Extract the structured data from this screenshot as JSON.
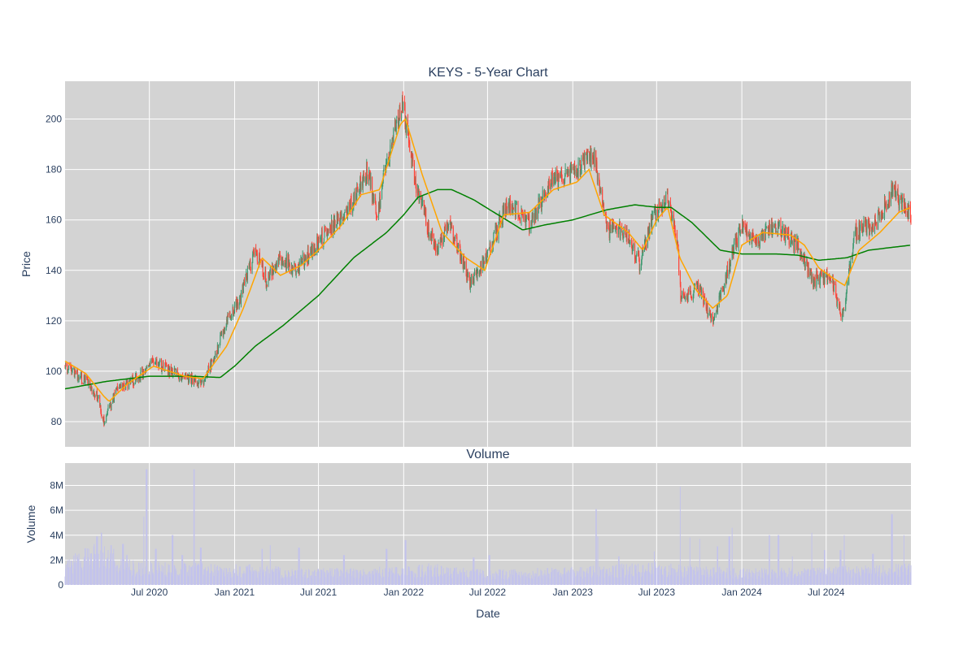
{
  "chart_data": {
    "type": "candlestick",
    "title": "KEYS - 5-Year Chart",
    "colors": {
      "increasing": "#3d9970",
      "decreasing": "#ff4136",
      "ma_short": "#ffa500",
      "ma_long": "#008000",
      "volume": "#c3c3ec",
      "plot_bg": "#d3d3d3",
      "grid": "#ffffff"
    },
    "x_range": [
      "2020-01-01",
      "2024-12-31"
    ],
    "x_ticks": [
      {
        "date": "2020-07-01",
        "label": "Jul 2020"
      },
      {
        "date": "2021-01-01",
        "label": "Jan 2021"
      },
      {
        "date": "2021-07-01",
        "label": "Jul 2021"
      },
      {
        "date": "2022-01-01",
        "label": "Jan 2022"
      },
      {
        "date": "2022-07-01",
        "label": "Jul 2022"
      },
      {
        "date": "2023-01-01",
        "label": "Jan 2023"
      },
      {
        "date": "2023-07-01",
        "label": "Jul 2023"
      },
      {
        "date": "2024-01-01",
        "label": "Jan 2024"
      },
      {
        "date": "2024-07-01",
        "label": "Jul 2024"
      }
    ],
    "x_axis_title": "Date",
    "price_panel": {
      "ylabel": "Price",
      "ylim": [
        70,
        215
      ],
      "y_ticks": [
        80,
        100,
        120,
        140,
        160,
        180,
        200
      ],
      "close_anchors": [
        [
          "2020-01-01",
          102
        ],
        [
          "2020-02-15",
          96
        ],
        [
          "2020-03-10",
          90
        ],
        [
          "2020-03-25",
          80
        ],
        [
          "2020-04-20",
          92
        ],
        [
          "2020-06-10",
          98
        ],
        [
          "2020-07-10",
          104
        ],
        [
          "2020-09-01",
          98
        ],
        [
          "2020-10-25",
          96
        ],
        [
          "2020-11-15",
          104
        ],
        [
          "2020-12-15",
          120
        ],
        [
          "2021-01-15",
          130
        ],
        [
          "2021-02-15",
          148
        ],
        [
          "2021-03-10",
          136
        ],
        [
          "2021-04-10",
          145
        ],
        [
          "2021-05-15",
          140
        ],
        [
          "2021-06-15",
          148
        ],
        [
          "2021-08-01",
          158
        ],
        [
          "2021-09-15",
          168
        ],
        [
          "2021-10-15",
          180
        ],
        [
          "2021-11-05",
          160
        ],
        [
          "2021-11-20",
          178
        ],
        [
          "2021-12-30",
          207
        ],
        [
          "2022-01-25",
          175
        ],
        [
          "2022-03-10",
          148
        ],
        [
          "2022-04-10",
          158
        ],
        [
          "2022-05-25",
          135
        ],
        [
          "2022-06-25",
          143
        ],
        [
          "2022-08-15",
          168
        ],
        [
          "2022-09-30",
          158
        ],
        [
          "2022-11-15",
          175
        ],
        [
          "2023-01-01",
          178
        ],
        [
          "2023-02-15",
          186
        ],
        [
          "2023-03-15",
          156
        ],
        [
          "2023-04-25",
          156
        ],
        [
          "2023-05-25",
          143
        ],
        [
          "2023-06-25",
          162
        ],
        [
          "2023-07-25",
          168
        ],
        [
          "2023-08-15",
          150
        ],
        [
          "2023-08-22",
          130
        ],
        [
          "2023-09-30",
          133
        ],
        [
          "2023-10-30",
          119
        ],
        [
          "2023-12-01",
          140
        ],
        [
          "2023-12-31",
          158
        ],
        [
          "2024-02-01",
          152
        ],
        [
          "2024-03-15",
          158
        ],
        [
          "2024-05-01",
          150
        ],
        [
          "2024-06-01",
          136
        ],
        [
          "2024-07-10",
          138
        ],
        [
          "2024-08-05",
          121
        ],
        [
          "2024-09-01",
          155
        ],
        [
          "2024-10-15",
          158
        ],
        [
          "2024-11-20",
          172
        ],
        [
          "2024-12-31",
          162
        ]
      ],
      "ma_short_anchors": [
        [
          "2020-01-01",
          104
        ],
        [
          "2020-02-15",
          99
        ],
        [
          "2020-03-25",
          90
        ],
        [
          "2020-04-05",
          88
        ],
        [
          "2020-05-15",
          95
        ],
        [
          "2020-07-10",
          102
        ],
        [
          "2020-09-15",
          98
        ],
        [
          "2020-10-25",
          97
        ],
        [
          "2020-12-15",
          110
        ],
        [
          "2021-01-20",
          125
        ],
        [
          "2021-03-01",
          145
        ],
        [
          "2021-04-10",
          138
        ],
        [
          "2021-05-25",
          142
        ],
        [
          "2021-07-01",
          148
        ],
        [
          "2021-08-20",
          158
        ],
        [
          "2021-10-01",
          170
        ],
        [
          "2021-11-10",
          172
        ],
        [
          "2021-12-25",
          198
        ],
        [
          "2022-01-05",
          200
        ],
        [
          "2022-02-10",
          178
        ],
        [
          "2022-03-25",
          155
        ],
        [
          "2022-05-15",
          145
        ],
        [
          "2022-06-25",
          140
        ],
        [
          "2022-08-05",
          162
        ],
        [
          "2022-09-30",
          163
        ],
        [
          "2022-11-20",
          172
        ],
        [
          "2023-01-10",
          175
        ],
        [
          "2023-02-05",
          180
        ],
        [
          "2023-03-10",
          162
        ],
        [
          "2023-05-01",
          155
        ],
        [
          "2023-06-01",
          148
        ],
        [
          "2023-07-01",
          160
        ],
        [
          "2023-07-25",
          165
        ],
        [
          "2023-08-20",
          145
        ],
        [
          "2023-09-25",
          132
        ],
        [
          "2023-10-30",
          125
        ],
        [
          "2023-12-01",
          130
        ],
        [
          "2024-01-01",
          150
        ],
        [
          "2024-02-15",
          155
        ],
        [
          "2024-04-15",
          154
        ],
        [
          "2024-05-15",
          150
        ],
        [
          "2024-06-15",
          141
        ],
        [
          "2024-07-15",
          137
        ],
        [
          "2024-08-10",
          134
        ],
        [
          "2024-09-10",
          148
        ],
        [
          "2024-10-25",
          155
        ],
        [
          "2024-12-05",
          163
        ],
        [
          "2024-12-31",
          165
        ]
      ],
      "ma_long_anchors": [
        [
          "2020-01-01",
          93
        ],
        [
          "2020-04-01",
          96
        ],
        [
          "2020-07-01",
          98
        ],
        [
          "2020-10-01",
          98
        ],
        [
          "2020-12-01",
          97.5
        ],
        [
          "2021-01-01",
          102
        ],
        [
          "2021-02-15",
          110
        ],
        [
          "2021-04-15",
          118
        ],
        [
          "2021-07-01",
          130
        ],
        [
          "2021-09-15",
          145
        ],
        [
          "2021-11-25",
          155
        ],
        [
          "2022-01-01",
          162
        ],
        [
          "2022-02-01",
          169
        ],
        [
          "2022-03-15",
          172
        ],
        [
          "2022-04-15",
          172
        ],
        [
          "2022-06-01",
          168
        ],
        [
          "2022-07-15",
          163
        ],
        [
          "2022-09-15",
          156
        ],
        [
          "2022-11-01",
          158
        ],
        [
          "2023-01-01",
          160
        ],
        [
          "2023-03-15",
          164
        ],
        [
          "2023-05-15",
          166
        ],
        [
          "2023-07-01",
          165
        ],
        [
          "2023-08-01",
          165
        ],
        [
          "2023-09-15",
          159
        ],
        [
          "2023-11-15",
          148
        ],
        [
          "2024-01-01",
          146.5
        ],
        [
          "2024-03-15",
          146.5
        ],
        [
          "2024-05-01",
          146
        ],
        [
          "2024-06-15",
          144
        ],
        [
          "2024-08-15",
          145
        ],
        [
          "2024-10-01",
          148
        ],
        [
          "2024-12-31",
          150
        ]
      ]
    },
    "volume_panel": {
      "title": "Volume",
      "ylabel": "Volume",
      "ylim": [
        0,
        9800000
      ],
      "y_ticks": [
        0,
        2000000,
        4000000,
        6000000,
        8000000
      ],
      "y_tick_labels": [
        "0",
        "2M",
        "4M",
        "6M",
        "8M"
      ],
      "volume_anchors": [
        [
          "2020-01-01",
          1500000
        ],
        [
          "2020-03-15",
          2800000
        ],
        [
          "2020-06-01",
          1500000
        ],
        [
          "2020-09-01",
          1400000
        ],
        [
          "2021-01-01",
          1300000
        ],
        [
          "2021-06-01",
          1000000
        ],
        [
          "2021-12-01",
          1100000
        ],
        [
          "2022-03-01",
          1300000
        ],
        [
          "2022-07-01",
          900000
        ],
        [
          "2023-01-01",
          1100000
        ],
        [
          "2023-07-01",
          1400000
        ],
        [
          "2024-01-01",
          1000000
        ],
        [
          "2024-07-01",
          1100000
        ],
        [
          "2024-12-31",
          1300000
        ]
      ],
      "spikes": [
        [
          "2020-03-10",
          3900000
        ],
        [
          "2020-03-20",
          4200000
        ],
        [
          "2020-04-10",
          3200000
        ],
        [
          "2020-05-05",
          3300000
        ],
        [
          "2020-06-20",
          5500000
        ],
        [
          "2020-06-25",
          9300000
        ],
        [
          "2020-07-15",
          2900000
        ],
        [
          "2020-08-20",
          4000000
        ],
        [
          "2020-09-10",
          2400000
        ],
        [
          "2020-10-05",
          9300000
        ],
        [
          "2020-10-20",
          3000000
        ],
        [
          "2021-03-01",
          2900000
        ],
        [
          "2021-03-20",
          3200000
        ],
        [
          "2021-05-20",
          3000000
        ],
        [
          "2021-08-25",
          2400000
        ],
        [
          "2021-11-25",
          2900000
        ],
        [
          "2022-01-05",
          3600000
        ],
        [
          "2022-06-01",
          2200000
        ],
        [
          "2022-07-05",
          2400000
        ],
        [
          "2023-02-20",
          6100000
        ],
        [
          "2023-02-25",
          3900000
        ],
        [
          "2023-04-10",
          2300000
        ],
        [
          "2023-06-25",
          2700000
        ],
        [
          "2023-08-20",
          7900000
        ],
        [
          "2023-09-10",
          3800000
        ],
        [
          "2023-10-01",
          3700000
        ],
        [
          "2023-11-10",
          3100000
        ],
        [
          "2023-12-05",
          3900000
        ],
        [
          "2023-12-10",
          4600000
        ],
        [
          "2024-03-01",
          4000000
        ],
        [
          "2024-03-20",
          4000000
        ],
        [
          "2024-04-20",
          2300000
        ],
        [
          "2024-06-01",
          4200000
        ],
        [
          "2024-06-28",
          2800000
        ],
        [
          "2024-08-01",
          2800000
        ],
        [
          "2024-08-10",
          4000000
        ],
        [
          "2024-10-10",
          2500000
        ],
        [
          "2024-11-20",
          5700000
        ],
        [
          "2024-12-15",
          4000000
        ]
      ]
    }
  }
}
